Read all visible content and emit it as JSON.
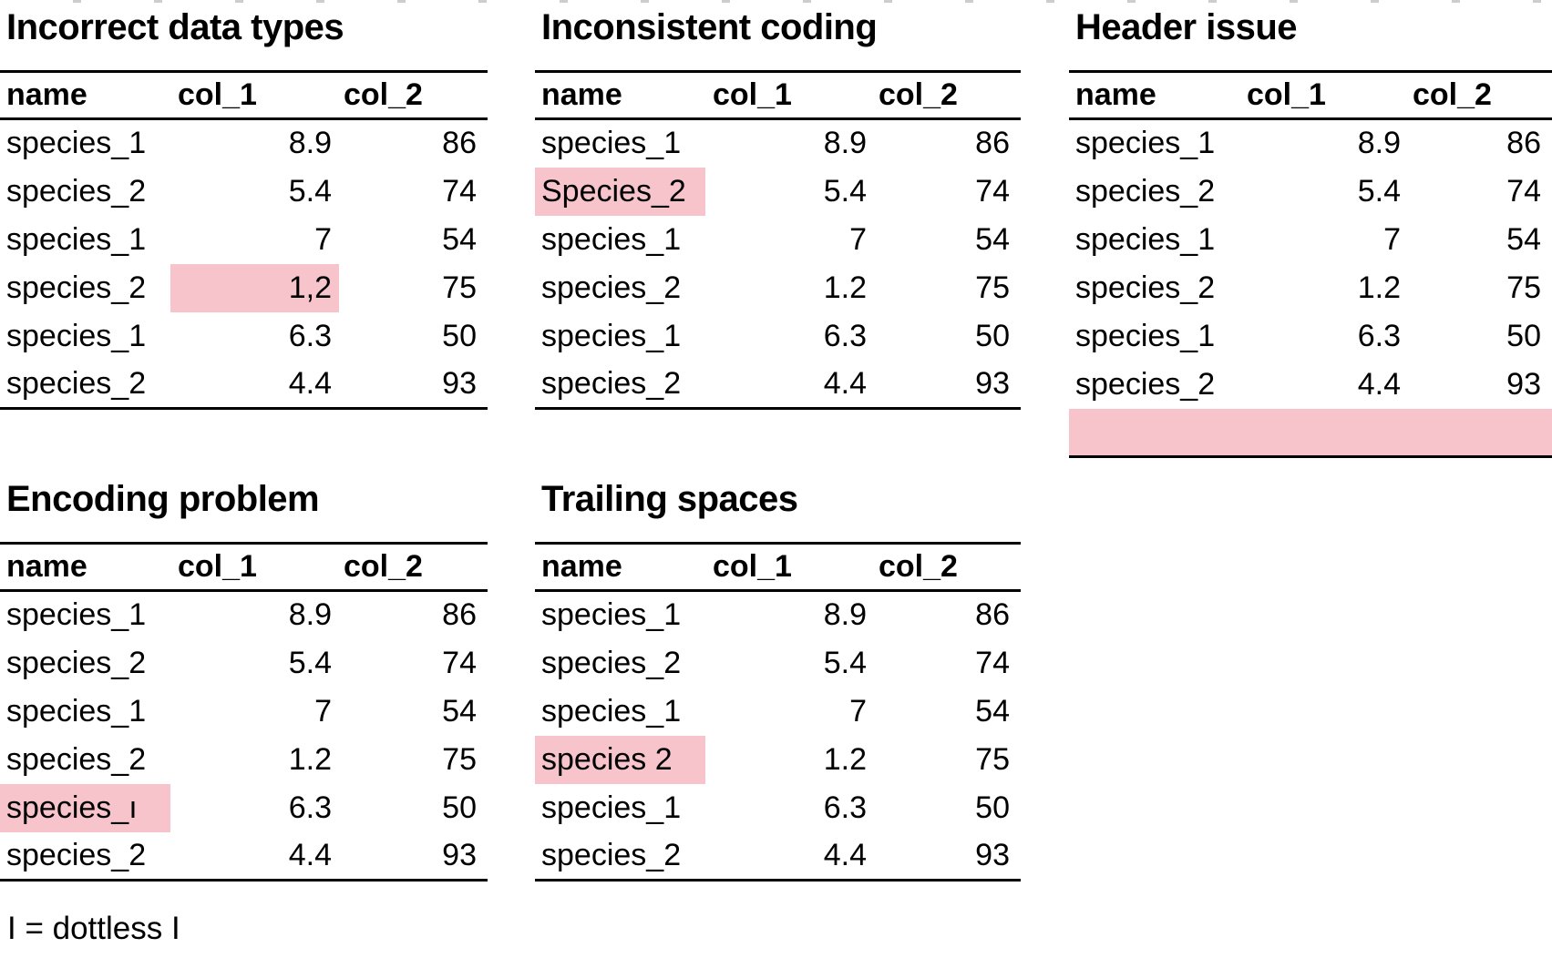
{
  "page": {
    "background": "#ffffff",
    "highlight_color": "#f7c4cb",
    "rule_color": "#000000",
    "footnote": "I = dottless I"
  },
  "tables": [
    {
      "id": "incorrect-data-types",
      "title": "Incorrect data types",
      "columns": [
        "name",
        "col_1",
        "col_2"
      ],
      "rows": [
        {
          "name": "species_1",
          "col_1": "8.9",
          "col_2": "86"
        },
        {
          "name": "species_2",
          "col_1": "5.4",
          "col_2": "74"
        },
        {
          "name": "species_1",
          "col_1": "7",
          "col_2": "54"
        },
        {
          "name": "species_2",
          "col_1": "1,2",
          "col_2": "75",
          "highlight": "col_1"
        },
        {
          "name": "species_1",
          "col_1": "6.3",
          "col_2": "50"
        },
        {
          "name": "species_2",
          "col_1": "4.4",
          "col_2": "93"
        }
      ]
    },
    {
      "id": "inconsistent-coding",
      "title": "Inconsistent coding",
      "columns": [
        "name",
        "col_1",
        "col_2"
      ],
      "rows": [
        {
          "name": "species_1",
          "col_1": "8.9",
          "col_2": "86"
        },
        {
          "name": "Species_2",
          "col_1": "5.4",
          "col_2": "74",
          "highlight": "name"
        },
        {
          "name": "species_1",
          "col_1": "7",
          "col_2": "54"
        },
        {
          "name": "species_2",
          "col_1": "1.2",
          "col_2": "75"
        },
        {
          "name": "species_1",
          "col_1": "6.3",
          "col_2": "50"
        },
        {
          "name": "species_2",
          "col_1": "4.4",
          "col_2": "93"
        }
      ]
    },
    {
      "id": "header-issue",
      "title": "Header issue",
      "columns": [
        "name",
        "col_1",
        "col_2"
      ],
      "rows": [
        {
          "name": "species_1",
          "col_1": "8.9",
          "col_2": "86"
        },
        {
          "name": "species_2",
          "col_1": "5.4",
          "col_2": "74"
        },
        {
          "name": "species_1",
          "col_1": "7",
          "col_2": "54"
        },
        {
          "name": "species_2",
          "col_1": "1.2",
          "col_2": "75"
        },
        {
          "name": "species_1",
          "col_1": "6.3",
          "col_2": "50"
        },
        {
          "name": "species_2",
          "col_1": "4.4",
          "col_2": "93"
        },
        {
          "name": "",
          "col_1": "",
          "col_2": "",
          "highlight": "full_row"
        }
      ]
    },
    {
      "id": "encoding-problem",
      "title": "Encoding problem",
      "columns": [
        "name",
        "col_1",
        "col_2"
      ],
      "rows": [
        {
          "name": "species_1",
          "col_1": "8.9",
          "col_2": "86"
        },
        {
          "name": "species_2",
          "col_1": "5.4",
          "col_2": "74"
        },
        {
          "name": "species_1",
          "col_1": "7",
          "col_2": "54"
        },
        {
          "name": "species_2",
          "col_1": "1.2",
          "col_2": "75"
        },
        {
          "name": "species_ı",
          "col_1": "6.3",
          "col_2": "50",
          "highlight": "name"
        },
        {
          "name": "species_2",
          "col_1": "4.4",
          "col_2": "93"
        }
      ]
    },
    {
      "id": "trailing-spaces",
      "title": "Trailing spaces",
      "columns": [
        "name",
        "col_1",
        "col_2"
      ],
      "rows": [
        {
          "name": "species_1",
          "col_1": "8.9",
          "col_2": "86"
        },
        {
          "name": "species_2",
          "col_1": "5.4",
          "col_2": "74"
        },
        {
          "name": "species_1",
          "col_1": "7",
          "col_2": "54"
        },
        {
          "name": "species 2",
          "col_1": "1.2",
          "col_2": "75",
          "highlight": "name"
        },
        {
          "name": "species_1",
          "col_1": "6.3",
          "col_2": "50"
        },
        {
          "name": "species_2",
          "col_1": "4.4",
          "col_2": "93"
        }
      ]
    }
  ]
}
